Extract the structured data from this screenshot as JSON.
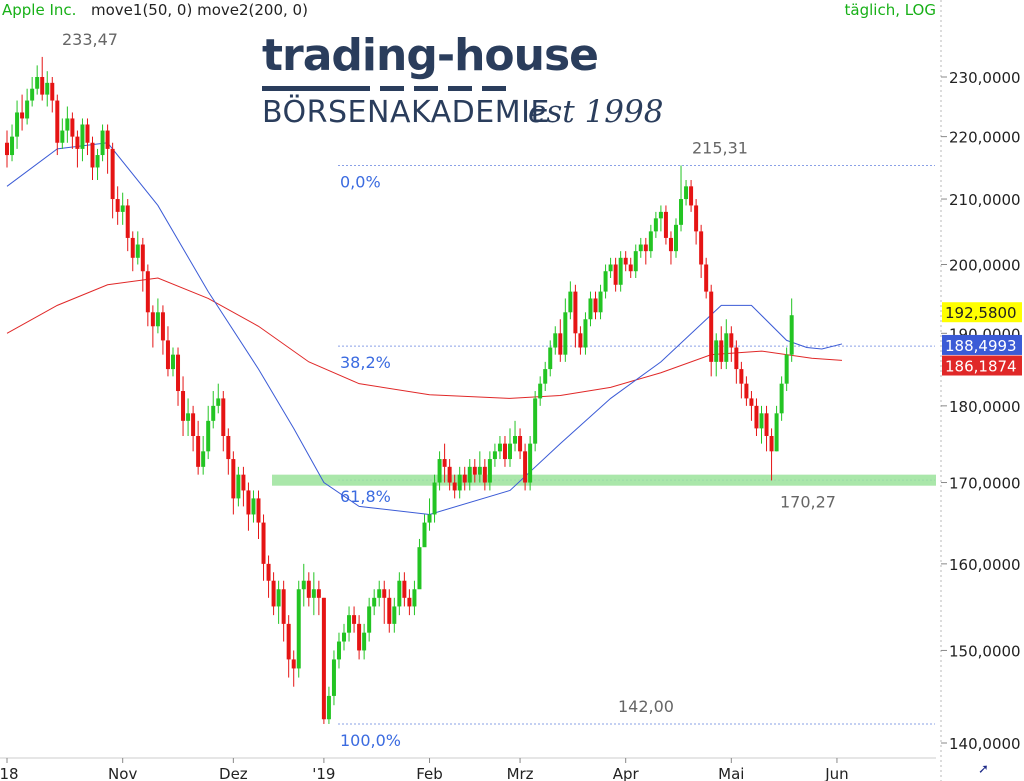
{
  "header": {
    "instrument": "Apple Inc.",
    "indicators": "move1(50, 0) move2(200, 0)",
    "timeframe": "täglich, LOG"
  },
  "logo": {
    "line1": "trading-house",
    "line2": "BÖRSENAKADEMIE",
    "tagline": "est 1998"
  },
  "colors": {
    "up": "#23c423",
    "down": "#e51414",
    "sma50": "#3b5bd6",
    "sma200": "#e02828",
    "support_zone": "#9be39b",
    "price_label": "#ffff00",
    "fib_line": "#8aa0e6",
    "fib_text": "#3b6be0"
  },
  "chart_data": {
    "type": "candlestick",
    "scale": "log",
    "ylim": [
      140,
      240
    ],
    "yticks": [
      140,
      150,
      160,
      170,
      180,
      190,
      200,
      210,
      220,
      230
    ],
    "ytick_labels": [
      "140,0000",
      "150,0000",
      "160,0000",
      "170,0000",
      "180,0000",
      "190,0000",
      "200,0000",
      "210,0000",
      "220,0000",
      "230,0000"
    ],
    "x_labels": [
      {
        "day": 0,
        "label": "'18"
      },
      {
        "day": 23,
        "label": "Nov"
      },
      {
        "day": 45,
        "label": "Dez"
      },
      {
        "day": 63,
        "label": "'19"
      },
      {
        "day": 84,
        "label": "Feb"
      },
      {
        "day": 102,
        "label": "Mrz"
      },
      {
        "day": 123,
        "label": "Apr"
      },
      {
        "day": 144,
        "label": "Mai"
      },
      {
        "day": 165,
        "label": "Jun"
      }
    ],
    "last_price": {
      "value": 192.58,
      "label": "192,5800"
    },
    "sma50_last": {
      "value": 188.4993,
      "label": "188,4993"
    },
    "sma200_last": {
      "value": 186.1874,
      "label": "186,1874"
    },
    "fibonacci": [
      {
        "level": "0,0%",
        "value": 215.31
      },
      {
        "level": "38,2%",
        "value": 188.2
      },
      {
        "level": "61,8%",
        "value": 170.3
      },
      {
        "level": "100,0%",
        "value": 142.0
      }
    ],
    "support_zone": [
      169.6,
      171.0
    ],
    "annotations": [
      {
        "text": "233,47",
        "value": 233.47
      },
      {
        "text": "215,31",
        "value": 215.31
      },
      {
        "text": "170,27",
        "value": 170.27
      },
      {
        "text": "142,00",
        "value": 142.0
      }
    ],
    "candles": [
      [
        219,
        217,
        221,
        215
      ],
      [
        217,
        220,
        222,
        216
      ],
      [
        220,
        224,
        226,
        218
      ],
      [
        224,
        223,
        227,
        221
      ],
      [
        223,
        226,
        228,
        222
      ],
      [
        226,
        228,
        230,
        225
      ],
      [
        228,
        230,
        232,
        227
      ],
      [
        230,
        227,
        233.47,
        226
      ],
      [
        227,
        229,
        231,
        225
      ],
      [
        229,
        226,
        230,
        224
      ],
      [
        226,
        219,
        227,
        217
      ],
      [
        219,
        221,
        223,
        218
      ],
      [
        221,
        223,
        225,
        219
      ],
      [
        223,
        220,
        224,
        218
      ],
      [
        220,
        218,
        221,
        215
      ],
      [
        218,
        222,
        223,
        216
      ],
      [
        222,
        219,
        223,
        217
      ],
      [
        219,
        215,
        220,
        213
      ],
      [
        215,
        217,
        218,
        213
      ],
      [
        217,
        221,
        222,
        216
      ],
      [
        221,
        218,
        222,
        214
      ],
      [
        218,
        210,
        219,
        207
      ],
      [
        210,
        208,
        212,
        206
      ],
      [
        208,
        209,
        211,
        206
      ],
      [
        209,
        204,
        210,
        202
      ],
      [
        204,
        201,
        205,
        199
      ],
      [
        201,
        203,
        205,
        200
      ],
      [
        203,
        199,
        204,
        196
      ],
      [
        199,
        193,
        200,
        191
      ],
      [
        193,
        191,
        194,
        188
      ],
      [
        191,
        193,
        195,
        190
      ],
      [
        193,
        189,
        194,
        187
      ],
      [
        189,
        185,
        191,
        184
      ],
      [
        185,
        187,
        188,
        184
      ],
      [
        187,
        182,
        188,
        180
      ],
      [
        182,
        178,
        184,
        176
      ],
      [
        178,
        179,
        181,
        176
      ],
      [
        179,
        176,
        180,
        174
      ],
      [
        176,
        172,
        178,
        171
      ],
      [
        172,
        174,
        176,
        171
      ],
      [
        174,
        178,
        180,
        173
      ],
      [
        178,
        180,
        182,
        177
      ],
      [
        180,
        181,
        183,
        179
      ],
      [
        181,
        176,
        182,
        174
      ],
      [
        176,
        173,
        177,
        171
      ],
      [
        173,
        168,
        174,
        166
      ],
      [
        168,
        171,
        172,
        167
      ],
      [
        171,
        169,
        172,
        167
      ],
      [
        169,
        166,
        170,
        164
      ],
      [
        166,
        168,
        169,
        165
      ],
      [
        168,
        165,
        169,
        163
      ],
      [
        165,
        160,
        166,
        158
      ],
      [
        160,
        158,
        161,
        156
      ],
      [
        158,
        155,
        159,
        154
      ],
      [
        155,
        157,
        158,
        153
      ],
      [
        157,
        153,
        158,
        151
      ],
      [
        153,
        149,
        154,
        147
      ],
      [
        149,
        148,
        150,
        146
      ],
      [
        148,
        157,
        158,
        147
      ],
      [
        157,
        158,
        160,
        155
      ],
      [
        158,
        156,
        159,
        155
      ],
      [
        156,
        157,
        159,
        154
      ],
      [
        157,
        156,
        158,
        154
      ],
      [
        156,
        142.5,
        156,
        142
      ],
      [
        142.5,
        145,
        146,
        142
      ],
      [
        145,
        149,
        150,
        144
      ],
      [
        149,
        151,
        152,
        148
      ],
      [
        151,
        152,
        153,
        150
      ],
      [
        152,
        154,
        155,
        151
      ],
      [
        154,
        153,
        155,
        152
      ],
      [
        153,
        150,
        154,
        149
      ],
      [
        150,
        152,
        153,
        149
      ],
      [
        152,
        155,
        156,
        151
      ],
      [
        155,
        156,
        157,
        154
      ],
      [
        156,
        157,
        158,
        155
      ],
      [
        157,
        156,
        158,
        153
      ],
      [
        156,
        153,
        157,
        152
      ],
      [
        153,
        155,
        156,
        152
      ],
      [
        155,
        158,
        159,
        154
      ],
      [
        158,
        156,
        159,
        155
      ],
      [
        156,
        155,
        157,
        154
      ],
      [
        155,
        157,
        158,
        154
      ],
      [
        157,
        162,
        163,
        161
      ],
      [
        162,
        165,
        166,
        163
      ],
      [
        165,
        166,
        168,
        164
      ],
      [
        166,
        170,
        171,
        165
      ],
      [
        170,
        173,
        174,
        169
      ],
      [
        173,
        172,
        175,
        170
      ],
      [
        172,
        170,
        173,
        169
      ],
      [
        170,
        169,
        171,
        168
      ],
      [
        169,
        171,
        172,
        168
      ],
      [
        171,
        170,
        172,
        169
      ],
      [
        170,
        172,
        173,
        169
      ],
      [
        172,
        171,
        173,
        170
      ],
      [
        171,
        172,
        174,
        170
      ],
      [
        172,
        170,
        173,
        169
      ],
      [
        170,
        173,
        174,
        169
      ],
      [
        173,
        174,
        175,
        172
      ],
      [
        174,
        175,
        176,
        173
      ],
      [
        175,
        173,
        176,
        172
      ],
      [
        173,
        175,
        177,
        172
      ],
      [
        175,
        176,
        178,
        174
      ],
      [
        176,
        174,
        177,
        173
      ],
      [
        174,
        170,
        175,
        169
      ],
      [
        170,
        175,
        176,
        169
      ],
      [
        175,
        181,
        182,
        174
      ],
      [
        181,
        183,
        184,
        180
      ],
      [
        183,
        185,
        186,
        182
      ],
      [
        185,
        188,
        189,
        184
      ],
      [
        188,
        190,
        191,
        187
      ],
      [
        190,
        187,
        192,
        186
      ],
      [
        187,
        193,
        195,
        186
      ],
      [
        193,
        196,
        197.5,
        192
      ],
      [
        196,
        190,
        197,
        188
      ],
      [
        190,
        188,
        191,
        187
      ],
      [
        188,
        192,
        193,
        187
      ],
      [
        192,
        195,
        196,
        191
      ],
      [
        195,
        193,
        196,
        192
      ],
      [
        193,
        196,
        197,
        192
      ],
      [
        196,
        199,
        200,
        195
      ],
      [
        199,
        200,
        201,
        198
      ],
      [
        200,
        197,
        201,
        196
      ],
      [
        197,
        201,
        202,
        196
      ],
      [
        201,
        200,
        202,
        199
      ],
      [
        200,
        199,
        201,
        198
      ],
      [
        199,
        202,
        203,
        198
      ],
      [
        202,
        203,
        204,
        201
      ],
      [
        203,
        202,
        204,
        200
      ],
      [
        202,
        205,
        206,
        201
      ],
      [
        205,
        207,
        208,
        204
      ],
      [
        207,
        208,
        209,
        205
      ],
      [
        208,
        204,
        209,
        203
      ],
      [
        204,
        202,
        205,
        200
      ],
      [
        202,
        206,
        207,
        201
      ],
      [
        206,
        210,
        215.31,
        205
      ],
      [
        210,
        212,
        213,
        209
      ],
      [
        212,
        209,
        213,
        208
      ],
      [
        209,
        205,
        210,
        203
      ],
      [
        205,
        200,
        206,
        198
      ],
      [
        200,
        196,
        201,
        195
      ],
      [
        196,
        186,
        197,
        184
      ],
      [
        186,
        189,
        190,
        184
      ],
      [
        189,
        186,
        191,
        185
      ],
      [
        186,
        190,
        192,
        185
      ],
      [
        190,
        188,
        191,
        186
      ],
      [
        188,
        185,
        189,
        183
      ],
      [
        185,
        183,
        186,
        181
      ],
      [
        183,
        181,
        184,
        180
      ],
      [
        181,
        180,
        182,
        178
      ],
      [
        180,
        177,
        181,
        176
      ],
      [
        177,
        179,
        180,
        175
      ],
      [
        179,
        176,
        180,
        174
      ],
      [
        176,
        174,
        177,
        170.27
      ],
      [
        174,
        179,
        180,
        174
      ],
      [
        179,
        183,
        184,
        178
      ],
      [
        183,
        187,
        188,
        182
      ],
      [
        187,
        192.58,
        195,
        186
      ]
    ],
    "sma50": [
      [
        0,
        212
      ],
      [
        10,
        218
      ],
      [
        20,
        219
      ],
      [
        30,
        209
      ],
      [
        40,
        196
      ],
      [
        50,
        185
      ],
      [
        57,
        177
      ],
      [
        63,
        170
      ],
      [
        70,
        167
      ],
      [
        84,
        166
      ],
      [
        100,
        169
      ],
      [
        110,
        175
      ],
      [
        120,
        181
      ],
      [
        130,
        186
      ],
      [
        142,
        194
      ],
      [
        148,
        194
      ],
      [
        155,
        189
      ],
      [
        159,
        188
      ],
      [
        162,
        187.8
      ],
      [
        166,
        188.5
      ]
    ],
    "sma200": [
      [
        0,
        190
      ],
      [
        10,
        194
      ],
      [
        20,
        197
      ],
      [
        30,
        198
      ],
      [
        40,
        195
      ],
      [
        50,
        191
      ],
      [
        60,
        186
      ],
      [
        70,
        183
      ],
      [
        84,
        181.5
      ],
      [
        100,
        181
      ],
      [
        110,
        181.4
      ],
      [
        120,
        182.5
      ],
      [
        130,
        184.5
      ],
      [
        140,
        187
      ],
      [
        150,
        187.5
      ],
      [
        160,
        186.5
      ],
      [
        166,
        186.2
      ]
    ]
  }
}
